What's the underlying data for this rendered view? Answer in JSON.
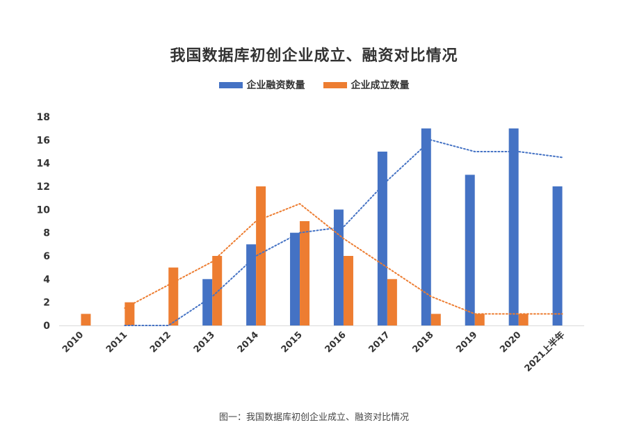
{
  "caption": "图一：我国数据库初创企业成立、融资对比情况",
  "chart_data": {
    "type": "bar",
    "title": "我国数据库初创企业成立、融资对比情况",
    "xlabel": "",
    "ylabel": "",
    "ylim": [
      0,
      18
    ],
    "yticks": [
      0,
      2,
      4,
      6,
      8,
      10,
      12,
      14,
      16,
      18
    ],
    "categories": [
      "2010",
      "2011",
      "2012",
      "2013",
      "2014",
      "2015",
      "2016",
      "2017",
      "2018",
      "2019",
      "2020",
      "2021上半年"
    ],
    "series": [
      {
        "name": "企业融资数量",
        "color": "#4472C4",
        "values": [
          0,
          0,
          0,
          4,
          7,
          8,
          10,
          15,
          17,
          13,
          17,
          12
        ]
      },
      {
        "name": "企业成立数量",
        "color": "#ED7D31",
        "values": [
          1,
          2,
          5,
          6,
          12,
          9,
          6,
          4,
          1,
          1,
          1,
          0
        ]
      }
    ],
    "trendlines": [
      {
        "series": "企业融资数量",
        "style": "dotted",
        "color": "#4472C4",
        "x": [
          "2011",
          "2012",
          "2013",
          "2014",
          "2015",
          "2016",
          "2017",
          "2018",
          "2019",
          "2020",
          "2021上半年"
        ],
        "values": [
          0,
          0,
          2.5,
          6,
          8,
          8.5,
          12.5,
          16,
          15,
          15,
          14.5
        ]
      },
      {
        "series": "企业成立数量",
        "style": "dotted",
        "color": "#ED7D31",
        "x": [
          "2011",
          "2012",
          "2013",
          "2014",
          "2015",
          "2016",
          "2017",
          "2018",
          "2019",
          "2020",
          "2021上半年"
        ],
        "values": [
          1.5,
          3.5,
          5.5,
          9,
          10.5,
          7.5,
          5,
          2.5,
          1,
          1,
          1
        ]
      }
    ],
    "legend_position": "top-center",
    "grid": false
  }
}
